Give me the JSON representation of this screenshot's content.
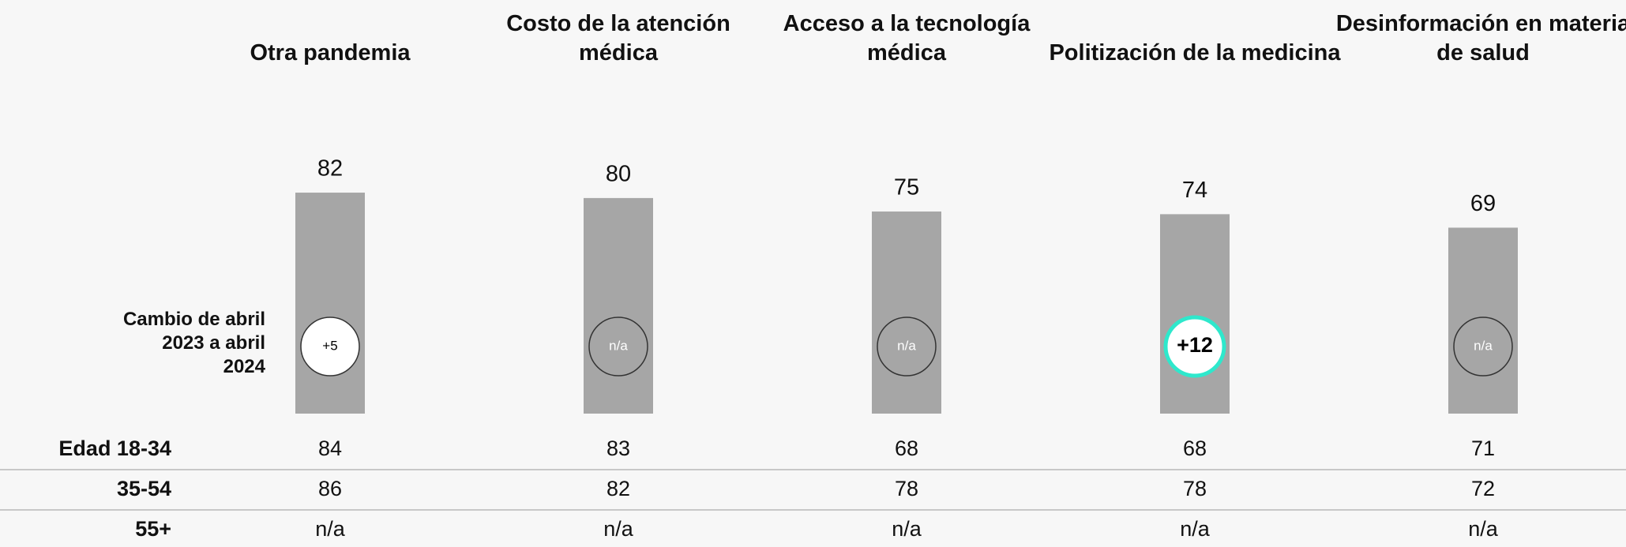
{
  "chart_data": {
    "type": "bar",
    "categories": [
      "Otra pandemia",
      "Costo de la atención médica",
      "Acceso a la tecnología médica",
      "Politización de la medicina",
      "Desinformación en materia de salud"
    ],
    "values": [
      82,
      80,
      75,
      74,
      69
    ],
    "color": "#a6a6a6",
    "change_label": "Cambio de abril 2023 a abril 2024",
    "changes": [
      "+5",
      "n/a",
      "n/a",
      "+12",
      "n/a"
    ],
    "change_fill": [
      "#ffffff",
      "#a6a6a6",
      "#a6a6a6",
      "#ffffff",
      "#a6a6a6"
    ],
    "change_stroke": [
      "#333333",
      "#333333",
      "#333333",
      "#2ee8cc",
      "#333333"
    ],
    "change_text_color": [
      "#000000",
      "#ffffff",
      "#ffffff",
      "#000000",
      "#ffffff"
    ],
    "table": {
      "rows": [
        {
          "label": "Edad 18-34",
          "values": [
            84,
            83,
            68,
            68,
            71
          ]
        },
        {
          "label": "35-54",
          "values": [
            86,
            82,
            78,
            78,
            72
          ]
        },
        {
          "label": "55+",
          "values": [
            "n/a",
            "n/a",
            "n/a",
            "n/a",
            "n/a"
          ]
        }
      ]
    }
  }
}
